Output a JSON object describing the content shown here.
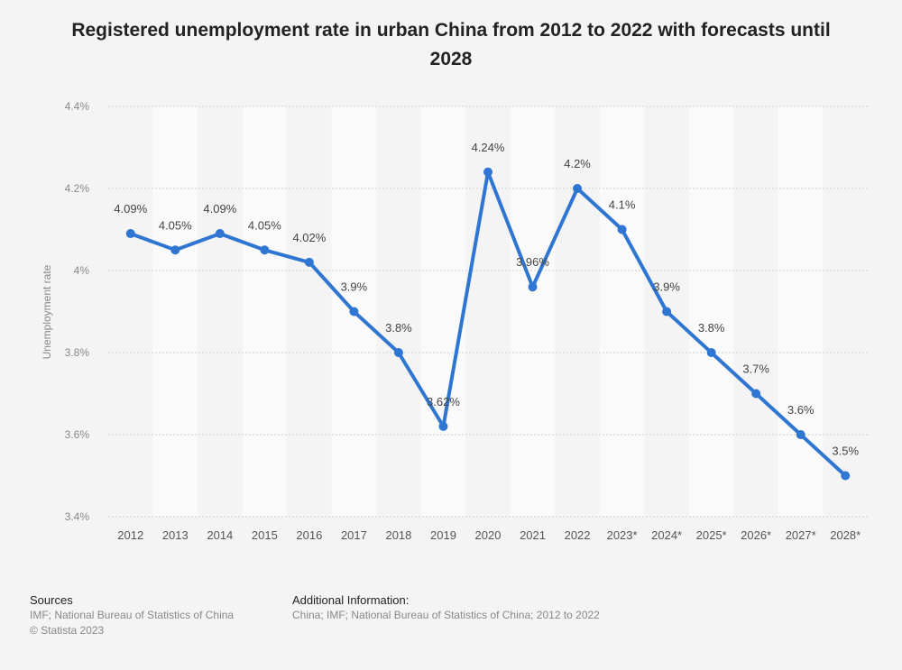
{
  "title": "Registered unemployment rate in urban China from 2012 to 2022 with forecasts until 2028",
  "sources": {
    "heading": "Sources",
    "line1": "IMF; National Bureau of Statistics of China",
    "line2": "© Statista 2023"
  },
  "additional_info": {
    "heading": "Additional Information:",
    "line1": "China; IMF; National Bureau of Statistics of China; 2012 to 2022"
  },
  "chart_data": {
    "type": "line",
    "title": "Registered unemployment rate in urban China from 2012 to 2022 with forecasts until 2028",
    "xlabel": "",
    "ylabel": "Unemployment rate",
    "categories": [
      "2012",
      "2013",
      "2014",
      "2015",
      "2016",
      "2017",
      "2018",
      "2019",
      "2020",
      "2021",
      "2022",
      "2023*",
      "2024*",
      "2025*",
      "2026*",
      "2027*",
      "2028*"
    ],
    "values": [
      4.09,
      4.05,
      4.09,
      4.05,
      4.02,
      3.9,
      3.8,
      3.62,
      4.24,
      3.96,
      4.2,
      4.1,
      3.9,
      3.8,
      3.7,
      3.6,
      3.5
    ],
    "data_labels": [
      "4.09%",
      "4.05%",
      "4.09%",
      "4.05%",
      "4.02%",
      "3.9%",
      "3.8%",
      "3.62%",
      "4.24%",
      "3.96%",
      "4.2%",
      "4.1%",
      "3.9%",
      "3.8%",
      "3.7%",
      "3.6%",
      "3.5%"
    ],
    "ylim": [
      3.4,
      4.4
    ],
    "yticks": [
      3.4,
      3.6,
      3.8,
      4.0,
      4.2,
      4.4
    ],
    "ytick_labels": [
      "3.4%",
      "3.6%",
      "3.8%",
      "4%",
      "4.2%",
      "4.4%"
    ],
    "grid": true,
    "line_color": "#2f76d2",
    "legend": "none"
  }
}
